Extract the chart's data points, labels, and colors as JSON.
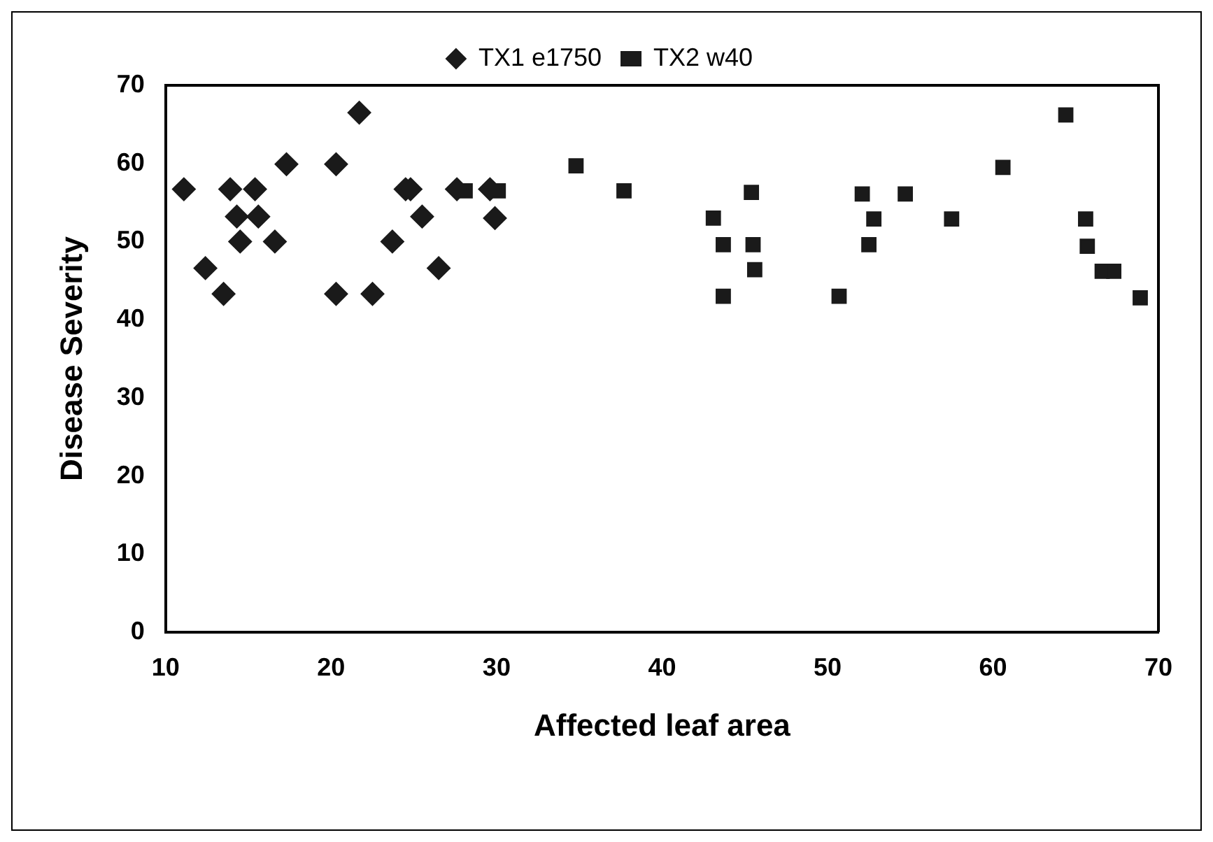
{
  "chart_data": {
    "type": "scatter",
    "xlabel": "Affected leaf area",
    "ylabel": "Disease Severity",
    "xlim": [
      10,
      70
    ],
    "ylim": [
      0,
      70
    ],
    "xticks": [
      10,
      20,
      30,
      40,
      50,
      60,
      70
    ],
    "yticks": [
      0,
      10,
      20,
      30,
      40,
      50,
      60,
      70
    ],
    "grid": false,
    "legend": "top",
    "series": [
      {
        "name": "TX1 e1750",
        "color": "#1a1a1a",
        "marker": "diamond",
        "x": [
          11.1,
          12.4,
          13.5,
          13.9,
          14.3,
          14.5,
          15.4,
          15.6,
          16.6,
          17.3,
          20.3,
          20.3,
          21.7,
          22.5,
          23.7,
          24.5,
          24.8,
          25.5,
          26.5,
          27.6,
          29.6,
          29.9
        ],
        "values": [
          56.7,
          46.6,
          43.3,
          56.7,
          53.2,
          50.0,
          56.7,
          53.2,
          50.0,
          59.9,
          59.9,
          43.3,
          66.5,
          43.3,
          50.0,
          56.7,
          56.7,
          53.2,
          46.6,
          56.7,
          56.7,
          53.0
        ]
      },
      {
        "name": "TX2 w40",
        "color": "#1a1a1a",
        "marker": "square",
        "x": [
          28.1,
          30.1,
          34.8,
          37.7,
          43.1,
          43.7,
          43.7,
          45.4,
          45.5,
          45.6,
          50.7,
          52.1,
          52.5,
          52.8,
          54.7,
          57.5,
          60.6,
          64.4,
          65.6,
          65.7,
          66.6,
          67.3,
          68.9
        ],
        "values": [
          56.5,
          56.5,
          59.7,
          56.5,
          53.0,
          49.6,
          43.0,
          56.3,
          49.6,
          46.4,
          43.0,
          56.1,
          49.6,
          52.9,
          56.1,
          52.9,
          59.5,
          66.2,
          52.9,
          49.4,
          46.2,
          46.2,
          42.8
        ]
      }
    ]
  }
}
